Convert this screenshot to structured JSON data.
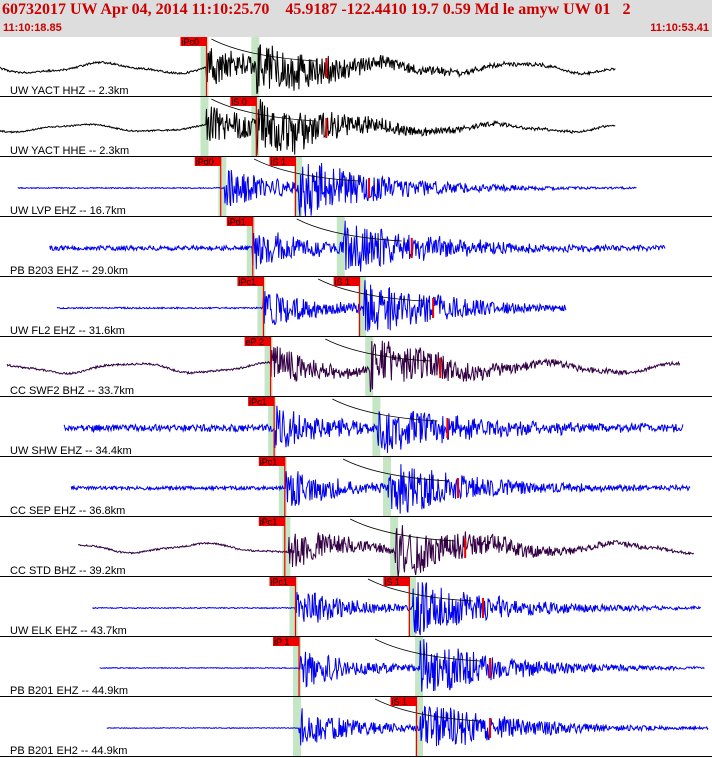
{
  "header": {
    "title": "60732017 UW Apr 04, 2014 11:10:25.70    45.9187 -122.4410 19.7 0.59 Md le amyw UW 01   2",
    "start_time": "11:10:18.85",
    "end_time": "11:10:53.41"
  },
  "colors": {
    "header_bg": "#dddddd",
    "header_text": "#cc0000",
    "trace_black": "#000000",
    "trace_blue": "#0000ee",
    "trace_purple": "#330044",
    "pick_flag": "#ee0000",
    "pick_window": "#c4e6c4"
  },
  "traces": [
    {
      "label": "UW YACT HHZ -- 2.3km",
      "color": "black",
      "style": "low",
      "amp": 0.22,
      "start": 0.0,
      "end": 0.865,
      "onsetP": 0.29,
      "onsetS": 0.36,
      "picks": [
        {
          "label": "iPc0",
          "pos": 0.29
        }
      ]
    },
    {
      "label": "UW YACT HHE -- 2.3km",
      "color": "black",
      "style": "low",
      "amp": 0.16,
      "start": 0.0,
      "end": 0.865,
      "onsetP": 0.29,
      "onsetS": 0.36,
      "picks": [
        {
          "label": "iS 0",
          "pos": 0.36
        }
      ]
    },
    {
      "label": "UW LVP EHZ -- 16.7km",
      "color": "blue",
      "style": "quiet",
      "amp": 0.03,
      "start": 0.025,
      "end": 0.895,
      "onsetP": 0.315,
      "onsetS": 0.42,
      "picks": [
        {
          "label": "iPd0",
          "pos": 0.31
        },
        {
          "label": "iS 1",
          "pos": 0.415
        }
      ]
    },
    {
      "label": "PB B203 EHZ -- 29.0km",
      "color": "blue",
      "style": "noisy",
      "amp": 0.08,
      "start": 0.07,
      "end": 0.935,
      "onsetP": 0.355,
      "onsetS": 0.48,
      "picks": [
        {
          "label": "iPd1",
          "pos": 0.355
        }
      ]
    },
    {
      "label": "UW FL2 EHZ -- 31.6km",
      "color": "blue",
      "style": "quiet",
      "amp": 0.04,
      "start": 0.08,
      "end": 0.795,
      "onsetP": 0.37,
      "onsetS": 0.51,
      "picks": [
        {
          "label": "iPc1",
          "pos": 0.37
        },
        {
          "label": "iS 1",
          "pos": 0.505
        }
      ]
    },
    {
      "label": "CC SWF2 BHZ -- 33.7km",
      "color": "purple",
      "style": "low",
      "amp": 0.22,
      "start": 0.01,
      "end": 0.955,
      "onsetP": 0.38,
      "onsetS": 0.52,
      "picks": [
        {
          "label": "eP 2",
          "pos": 0.38
        }
      ]
    },
    {
      "label": "UW SHW EHZ -- 34.4km",
      "color": "blue",
      "style": "noisy",
      "amp": 0.12,
      "start": 0.09,
      "end": 0.96,
      "onsetP": 0.385,
      "onsetS": 0.53,
      "picks": [
        {
          "label": "iPc1",
          "pos": 0.385
        }
      ]
    },
    {
      "label": "CC SEP EHZ -- 36.8km",
      "color": "blue",
      "style": "noisy",
      "amp": 0.06,
      "start": 0.1,
      "end": 0.97,
      "onsetP": 0.4,
      "onsetS": 0.545,
      "picks": [
        {
          "label": "iPc1",
          "pos": 0.4
        }
      ]
    },
    {
      "label": "CC STD BHZ -- 39.2km",
      "color": "purple",
      "style": "low",
      "amp": 0.2,
      "start": 0.11,
      "end": 0.975,
      "onsetP": 0.405,
      "onsetS": 0.555,
      "picks": [
        {
          "label": "iPc1",
          "pos": 0.4
        }
      ]
    },
    {
      "label": "UW ELK EHZ -- 43.7km",
      "color": "blue",
      "style": "quiet",
      "amp": 0.03,
      "start": 0.13,
      "end": 0.985,
      "onsetP": 0.415,
      "onsetS": 0.58,
      "picks": [
        {
          "label": "iPc1",
          "pos": 0.415
        },
        {
          "label": "iS 1",
          "pos": 0.575
        }
      ]
    },
    {
      "label": "PB B201 EHZ -- 44.9km",
      "color": "blue",
      "style": "quiet",
      "amp": 0.025,
      "start": 0.14,
      "end": 0.99,
      "onsetP": 0.42,
      "onsetS": 0.59,
      "picks": [
        {
          "label": "iP 1",
          "pos": 0.42
        }
      ]
    },
    {
      "label": "PB B201 EH2 -- 44.9km",
      "color": "blue",
      "style": "quiet",
      "amp": 0.02,
      "start": 0.15,
      "end": 0.995,
      "onsetP": 0.42,
      "onsetS": 0.59,
      "picks": [
        {
          "label": "iS 1",
          "pos": 0.585
        }
      ]
    }
  ]
}
